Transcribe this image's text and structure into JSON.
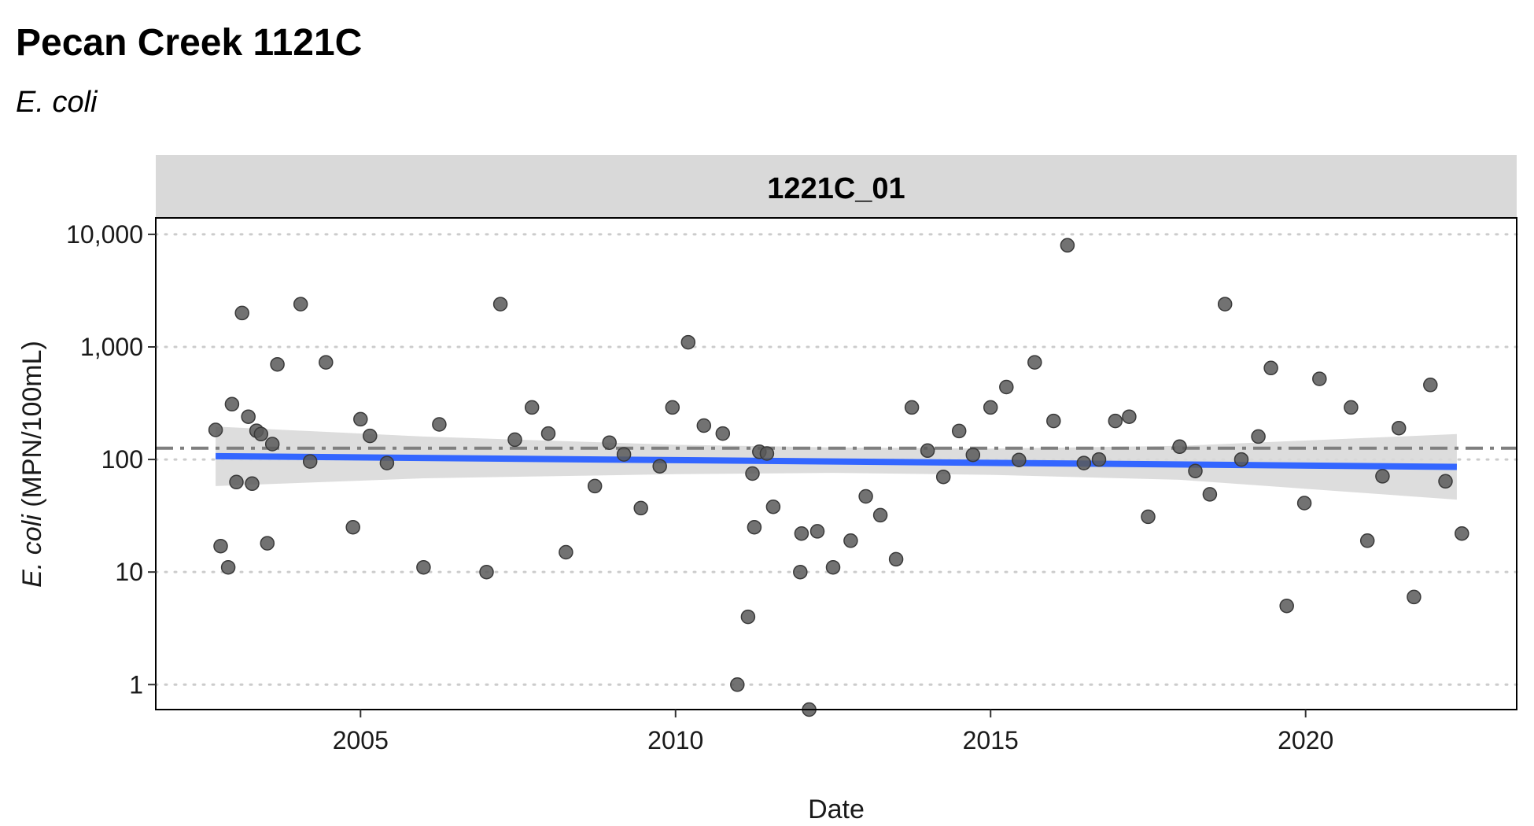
{
  "title": "Pecan Creek 1121C",
  "subtitle": "E. coli",
  "chart_data": {
    "type": "scatter",
    "title": "Pecan Creek 1121C",
    "subtitle": "E. coli",
    "facet_label": "1221C_01",
    "xlabel": "Date",
    "ylabel_italic": "E. coli",
    "ylabel_rest": " (MPN/100mL)",
    "y_scale": "log10",
    "xlim": [
      2001.75,
      2023.35
    ],
    "ylim": [
      0.6,
      14000
    ],
    "x_ticks": [
      2005,
      2010,
      2015,
      2020
    ],
    "x_tick_labels": [
      "2005",
      "2010",
      "2015",
      "2020"
    ],
    "y_ticks": [
      1,
      10,
      100,
      1000,
      10000
    ],
    "y_tick_labels": [
      "1",
      "10",
      "100",
      "1,000",
      "10,000"
    ],
    "grid": "horizontal dotted",
    "reference_line": {
      "value": 126,
      "style": "dash-dot"
    },
    "trend_line": {
      "x": [
        2002.7,
        2022.4
      ],
      "y": [
        107,
        86
      ],
      "color": "#3366ff"
    },
    "confidence_band": {
      "x": [
        2002.7,
        2006,
        2010,
        2012.5,
        2015,
        2018,
        2022.4
      ],
      "lower": [
        58,
        68,
        74,
        76,
        73,
        66,
        44
      ],
      "upper": [
        196,
        160,
        135,
        128,
        125,
        132,
        168
      ]
    },
    "point_color": "#595959",
    "line_color": "#3366ff",
    "band_color": "#d9d9d9",
    "reference_color": "#7f7f7f",
    "points": [
      {
        "x": 2002.7,
        "y": 183
      },
      {
        "x": 2002.78,
        "y": 17
      },
      {
        "x": 2002.9,
        "y": 11
      },
      {
        "x": 2002.96,
        "y": 310
      },
      {
        "x": 2003.03,
        "y": 63
      },
      {
        "x": 2003.12,
        "y": 2000
      },
      {
        "x": 2003.22,
        "y": 240
      },
      {
        "x": 2003.28,
        "y": 61
      },
      {
        "x": 2003.35,
        "y": 180
      },
      {
        "x": 2003.42,
        "y": 168
      },
      {
        "x": 2003.52,
        "y": 18
      },
      {
        "x": 2003.6,
        "y": 137
      },
      {
        "x": 2003.68,
        "y": 700
      },
      {
        "x": 2004.05,
        "y": 2400
      },
      {
        "x": 2004.2,
        "y": 96
      },
      {
        "x": 2004.45,
        "y": 730
      },
      {
        "x": 2004.88,
        "y": 25
      },
      {
        "x": 2005.0,
        "y": 228
      },
      {
        "x": 2005.15,
        "y": 162
      },
      {
        "x": 2005.42,
        "y": 93
      },
      {
        "x": 2006.0,
        "y": 11
      },
      {
        "x": 2006.25,
        "y": 205
      },
      {
        "x": 2007.0,
        "y": 10
      },
      {
        "x": 2007.22,
        "y": 2400
      },
      {
        "x": 2007.45,
        "y": 150
      },
      {
        "x": 2007.72,
        "y": 290
      },
      {
        "x": 2007.98,
        "y": 170
      },
      {
        "x": 2008.26,
        "y": 15
      },
      {
        "x": 2008.72,
        "y": 58
      },
      {
        "x": 2008.95,
        "y": 141
      },
      {
        "x": 2009.18,
        "y": 111
      },
      {
        "x": 2009.45,
        "y": 37
      },
      {
        "x": 2009.75,
        "y": 87
      },
      {
        "x": 2009.95,
        "y": 290
      },
      {
        "x": 2010.2,
        "y": 1100
      },
      {
        "x": 2010.45,
        "y": 200
      },
      {
        "x": 2010.75,
        "y": 170
      },
      {
        "x": 2010.98,
        "y": 1
      },
      {
        "x": 2011.15,
        "y": 4
      },
      {
        "x": 2011.22,
        "y": 75
      },
      {
        "x": 2011.25,
        "y": 25
      },
      {
        "x": 2011.33,
        "y": 117
      },
      {
        "x": 2011.45,
        "y": 113
      },
      {
        "x": 2011.55,
        "y": 38
      },
      {
        "x": 2011.98,
        "y": 10
      },
      {
        "x": 2012.0,
        "y": 22
      },
      {
        "x": 2012.12,
        "y": 0.6
      },
      {
        "x": 2012.25,
        "y": 23
      },
      {
        "x": 2012.5,
        "y": 11
      },
      {
        "x": 2012.78,
        "y": 19
      },
      {
        "x": 2013.02,
        "y": 47
      },
      {
        "x": 2013.25,
        "y": 32
      },
      {
        "x": 2013.5,
        "y": 13
      },
      {
        "x": 2013.75,
        "y": 290
      },
      {
        "x": 2014.0,
        "y": 120
      },
      {
        "x": 2014.25,
        "y": 70
      },
      {
        "x": 2014.5,
        "y": 179
      },
      {
        "x": 2014.72,
        "y": 110
      },
      {
        "x": 2015.0,
        "y": 290
      },
      {
        "x": 2015.25,
        "y": 440
      },
      {
        "x": 2015.45,
        "y": 99
      },
      {
        "x": 2015.7,
        "y": 730
      },
      {
        "x": 2016.0,
        "y": 220
      },
      {
        "x": 2016.22,
        "y": 8000
      },
      {
        "x": 2016.48,
        "y": 93
      },
      {
        "x": 2016.72,
        "y": 100
      },
      {
        "x": 2016.98,
        "y": 220
      },
      {
        "x": 2017.2,
        "y": 240
      },
      {
        "x": 2017.5,
        "y": 31
      },
      {
        "x": 2018.0,
        "y": 130
      },
      {
        "x": 2018.25,
        "y": 79
      },
      {
        "x": 2018.48,
        "y": 49
      },
      {
        "x": 2018.72,
        "y": 2400
      },
      {
        "x": 2018.98,
        "y": 100
      },
      {
        "x": 2019.25,
        "y": 160
      },
      {
        "x": 2019.45,
        "y": 650
      },
      {
        "x": 2019.7,
        "y": 5
      },
      {
        "x": 2019.98,
        "y": 41
      },
      {
        "x": 2020.22,
        "y": 520
      },
      {
        "x": 2020.72,
        "y": 290
      },
      {
        "x": 2020.98,
        "y": 19
      },
      {
        "x": 2021.22,
        "y": 71
      },
      {
        "x": 2021.48,
        "y": 190
      },
      {
        "x": 2021.72,
        "y": 6
      },
      {
        "x": 2021.98,
        "y": 460
      },
      {
        "x": 2022.22,
        "y": 64
      },
      {
        "x": 2022.48,
        "y": 22
      }
    ]
  }
}
